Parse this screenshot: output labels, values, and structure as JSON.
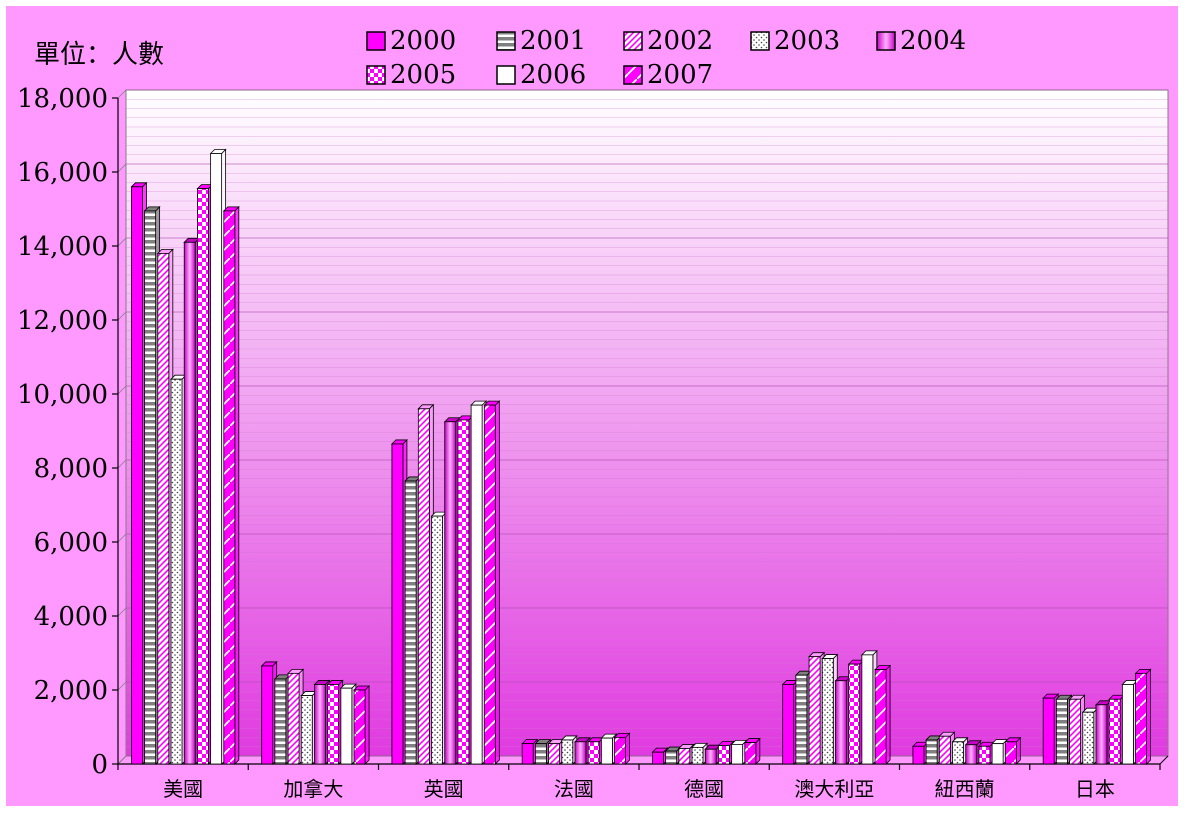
{
  "unit_label": "單位：人數",
  "legend": [
    "2000",
    "2001",
    "2002",
    "2003",
    "2004",
    "2005",
    "2006",
    "2007"
  ],
  "colors": {
    "background": "#ff99ff",
    "plot_top": "#ffffff",
    "plot_bottom": "#e038e0",
    "magenta": "#ff00ff",
    "dark_magenta": "#c800c8",
    "gray": "#808080",
    "white": "#ffffff"
  },
  "chart_data": {
    "type": "bar",
    "categories": [
      "美國",
      "加拿大",
      "英國",
      "法國",
      "德國",
      "澳大利亞",
      "紐西蘭",
      "日本"
    ],
    "ylim": [
      0,
      18000
    ],
    "y_ticks": [
      "0",
      "2,000",
      "4,000",
      "6,000",
      "8,000",
      "10,000",
      "12,000",
      "14,000",
      "16,000",
      "18,000"
    ],
    "legend_position": "top",
    "grid": true,
    "series": [
      {
        "name": "2000",
        "values": [
          15600,
          2650,
          8650,
          550,
          320,
          2150,
          480,
          1780
        ]
      },
      {
        "name": "2001",
        "values": [
          14950,
          2300,
          7650,
          550,
          350,
          2400,
          650,
          1750
        ]
      },
      {
        "name": "2002",
        "values": [
          13800,
          2450,
          9600,
          550,
          420,
          2900,
          750,
          1750
        ]
      },
      {
        "name": "2003",
        "values": [
          10400,
          1850,
          6700,
          650,
          450,
          2850,
          600,
          1400
        ]
      },
      {
        "name": "2004",
        "values": [
          14100,
          2150,
          9250,
          600,
          400,
          2250,
          520,
          1600
        ]
      },
      {
        "name": "2005",
        "values": [
          15550,
          2150,
          9300,
          600,
          500,
          2700,
          480,
          1750
        ]
      },
      {
        "name": "2006",
        "values": [
          16500,
          2050,
          9700,
          700,
          530,
          2950,
          550,
          2150
        ]
      },
      {
        "name": "2007",
        "values": [
          14950,
          2000,
          9700,
          720,
          580,
          2550,
          600,
          2450
        ]
      }
    ]
  }
}
